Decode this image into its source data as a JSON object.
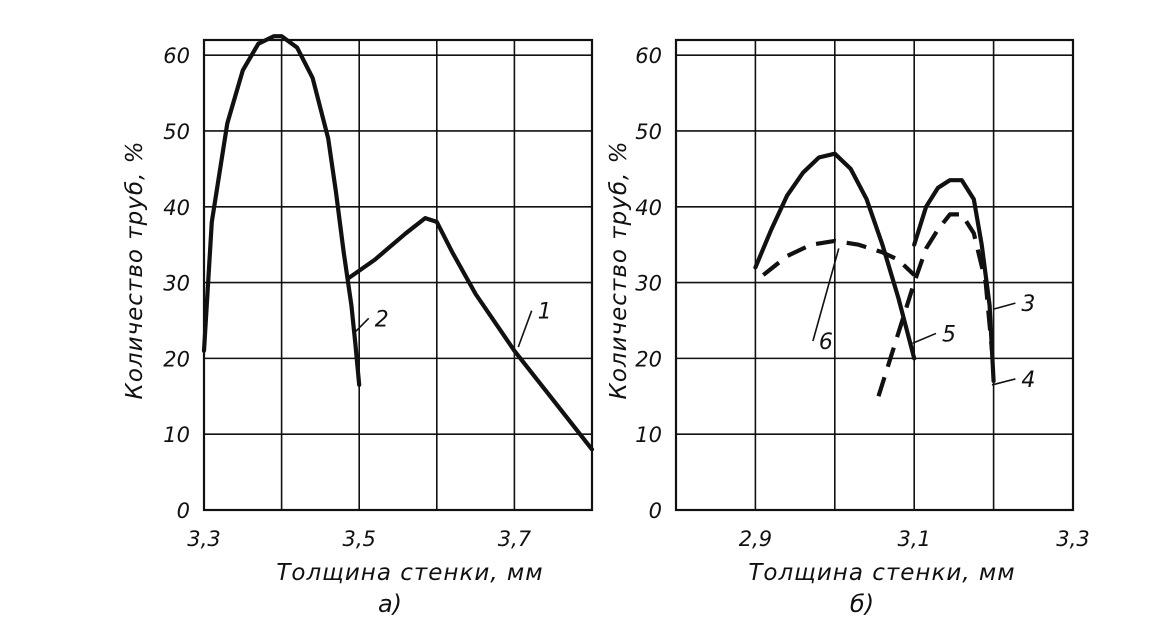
{
  "chart_data": [
    {
      "type": "line",
      "panel_label": "а)",
      "xlabel": "Толщина стенки, мм",
      "ylabel": "Количество труб, %",
      "xlim": [
        3.3,
        3.8
      ],
      "ylim": [
        0,
        62
      ],
      "xticks": [
        3.4,
        3.6
      ],
      "xtick_labels": [
        {
          "value": 3.3,
          "label": "3,3"
        },
        {
          "value": 3.5,
          "label": "3,5"
        },
        {
          "value": 3.7,
          "label": "3,7"
        }
      ],
      "yticks": [
        0,
        10,
        20,
        30,
        40,
        50,
        60
      ],
      "ytick_labels": [
        "0",
        "10",
        "20",
        "30",
        "40",
        "50",
        "60"
      ],
      "grid": true,
      "series": [
        {
          "name": "2",
          "style": "solid",
          "x": [
            3.3,
            3.31,
            3.33,
            3.35,
            3.37,
            3.39,
            3.4,
            3.42,
            3.44,
            3.46,
            3.47,
            3.48,
            3.49,
            3.495,
            3.5
          ],
          "y": [
            21,
            38,
            51,
            58,
            61.5,
            62.5,
            62.5,
            61,
            57,
            49,
            42,
            34,
            27,
            22,
            16.5
          ],
          "label_at": {
            "x": 3.52,
            "y": 24.5
          },
          "leader_to": {
            "x": 3.495,
            "y": 23.5
          }
        },
        {
          "name": "1",
          "style": "solid",
          "x": [
            3.485,
            3.52,
            3.56,
            3.585,
            3.6,
            3.62,
            3.65,
            3.7,
            3.75,
            3.8
          ],
          "y": [
            30.5,
            33,
            36.5,
            38.5,
            38,
            34,
            28.5,
            21,
            14.5,
            8
          ],
          "label_at": {
            "x": 3.73,
            "y": 25.5
          },
          "leader_to": {
            "x": 3.705,
            "y": 21.5
          }
        }
      ]
    },
    {
      "type": "line",
      "panel_label": "б)",
      "xlabel": "Толщина стенки, мм",
      "ylabel": "Количество труб, %",
      "xlim": [
        2.8,
        3.3
      ],
      "ylim": [
        0,
        62
      ],
      "xticks": [
        3.0,
        3.2
      ],
      "xtick_labels": [
        {
          "value": 2.9,
          "label": "2,9"
        },
        {
          "value": 3.1,
          "label": "3,1"
        },
        {
          "value": 3.3,
          "label": "3,3"
        }
      ],
      "yticks": [
        0,
        10,
        20,
        30,
        40,
        50,
        60
      ],
      "ytick_labels": [
        "0",
        "10",
        "20",
        "30",
        "40",
        "50",
        "60"
      ],
      "grid": true,
      "series": [
        {
          "name": "3",
          "style": "solid",
          "x": [
            3.1,
            3.115,
            3.13,
            3.145,
            3.16,
            3.175,
            3.185,
            3.195,
            3.2
          ],
          "y": [
            35,
            40,
            42.5,
            43.5,
            43.5,
            41,
            35,
            27,
            17
          ],
          "label_at": {
            "x": 3.235,
            "y": 26.5
          },
          "leader_to": {
            "x": 3.2,
            "y": 26.5
          }
        },
        {
          "name": "4",
          "style": "dashed",
          "x": [
            3.055,
            3.07,
            3.085,
            3.1,
            3.115,
            3.13,
            3.145,
            3.16,
            3.175,
            3.19,
            3.198
          ],
          "y": [
            15,
            20,
            25,
            30,
            34.5,
            37,
            39,
            39,
            36.5,
            30,
            21
          ],
          "label_at": {
            "x": 3.235,
            "y": 16.5
          },
          "leader_to": {
            "x": 3.198,
            "y": 16.5
          }
        },
        {
          "name": "5",
          "style": "solid",
          "x": [
            2.9,
            2.92,
            2.94,
            2.96,
            2.98,
            3.0,
            3.02,
            3.04,
            3.06,
            3.08,
            3.09,
            3.1
          ],
          "y": [
            32,
            37,
            41.5,
            44.5,
            46.5,
            47,
            45,
            41,
            35,
            28,
            24,
            20
          ],
          "label_at": {
            "x": 3.135,
            "y": 22.5
          },
          "leader_to": {
            "x": 3.098,
            "y": 22
          }
        },
        {
          "name": "6",
          "style": "dashed",
          "x": [
            2.91,
            2.94,
            2.97,
            3.0,
            3.03,
            3.06,
            3.08,
            3.1
          ],
          "y": [
            31,
            33.5,
            35,
            35.5,
            35,
            34,
            33,
            31
          ],
          "label_at": {
            "x": 2.98,
            "y": 21.5
          },
          "leader_to": {
            "x": 3.005,
            "y": 34.5
          }
        }
      ]
    }
  ]
}
